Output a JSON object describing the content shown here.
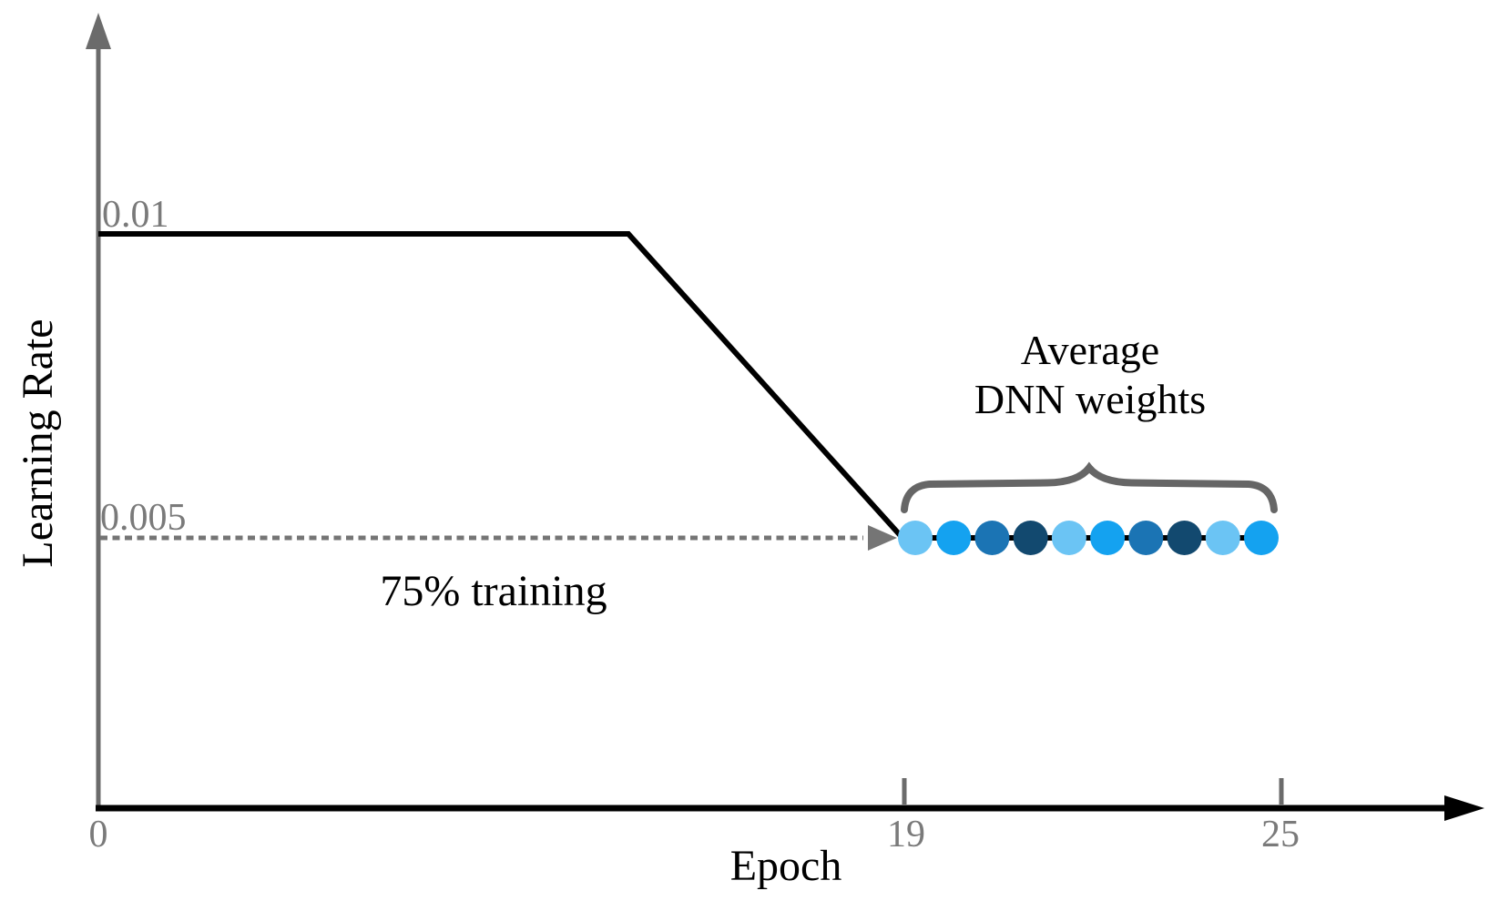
{
  "colors": {
    "axis_gray": "#6b6b6b",
    "tick_label_gray": "#7a7a7a",
    "line_black": "#000000",
    "brace_gray": "#666666",
    "dashed_arrow_gray": "#757575",
    "dot_light_blue": "#6bc4f4",
    "dot_bright_blue": "#14a2f0",
    "dot_steel_blue": "#1b74b4",
    "dot_navy_blue": "#12496f"
  },
  "chart_data": {
    "type": "line",
    "title": "",
    "xlabel": "Epoch",
    "ylabel": "Learning Rate",
    "x_ticks": [
      0,
      19,
      25
    ],
    "x_tick_labels": [
      "0",
      "19",
      "25"
    ],
    "y_ticks": [
      0.01,
      0.005
    ],
    "y_tick_labels": [
      "0.01",
      "0.005"
    ],
    "grid": false,
    "legend": false,
    "series": [
      {
        "name": "learning-rate-schedule",
        "x": [
          0,
          12.5,
          19
        ],
        "y": [
          0.01,
          0.01,
          0.005
        ],
        "color": "#000000",
        "style": "solid"
      },
      {
        "name": "reference-level-0.005",
        "x": [
          0,
          19
        ],
        "y": [
          0.005,
          0.005
        ],
        "color": "#757575",
        "style": "dashed with right arrowhead"
      }
    ],
    "swa_points": {
      "name": "dnn-weight-snapshots",
      "y": 0.005,
      "x_start": 19,
      "x_end": 25,
      "count": 10,
      "colors": [
        "#6bc4f4",
        "#14a2f0",
        "#1b74b4",
        "#12496f",
        "#6bc4f4",
        "#14a2f0",
        "#1b74b4",
        "#12496f",
        "#6bc4f4",
        "#14a2f0"
      ]
    },
    "annotations": [
      {
        "id": "training-fraction",
        "text": "75% training",
        "x": 9,
        "y": 0.0042
      },
      {
        "id": "average-weights",
        "text": "Average DNN weights",
        "line1": "Average",
        "line2": "DNN weights",
        "x": 22,
        "y": 0.0078
      },
      {
        "id": "brace",
        "shape": "curly brace over snapshot dots, epochs 19 to 25"
      }
    ]
  }
}
